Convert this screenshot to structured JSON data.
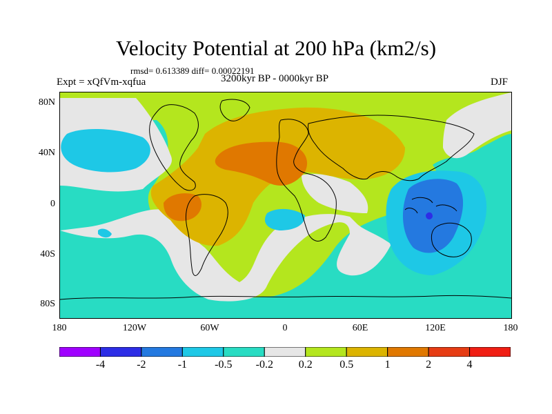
{
  "title": "Velocity Potential at 200 hPa (km2/s)",
  "stats": "rmsd= 0.613389 diff= 0.00022191",
  "experiment": "Expt = xQfVm-xqfua",
  "period": "3200kyr BP - 0000kyr BP",
  "season": "DJF",
  "map": {
    "y_ticks": [
      "80N",
      "40N",
      "0",
      "40S",
      "80S"
    ],
    "x_ticks": [
      "180",
      "120W",
      "60W",
      "0",
      "60E",
      "120E",
      "180"
    ]
  },
  "colorbar": {
    "colors": [
      "#a000ff",
      "#2d2de6",
      "#2479e0",
      "#1ec8e6",
      "#28dcc3",
      "#e6e6e6",
      "#b4e61e",
      "#dcb400",
      "#e07800",
      "#e63c14",
      "#f01e14"
    ],
    "labels": [
      "-4",
      "-2",
      "-1",
      "-0.5",
      "-0.2",
      "0.2",
      "0.5",
      "1",
      "2",
      "4"
    ]
  },
  "palette": {
    "land_line": "#000000",
    "background": "#ffffff"
  }
}
